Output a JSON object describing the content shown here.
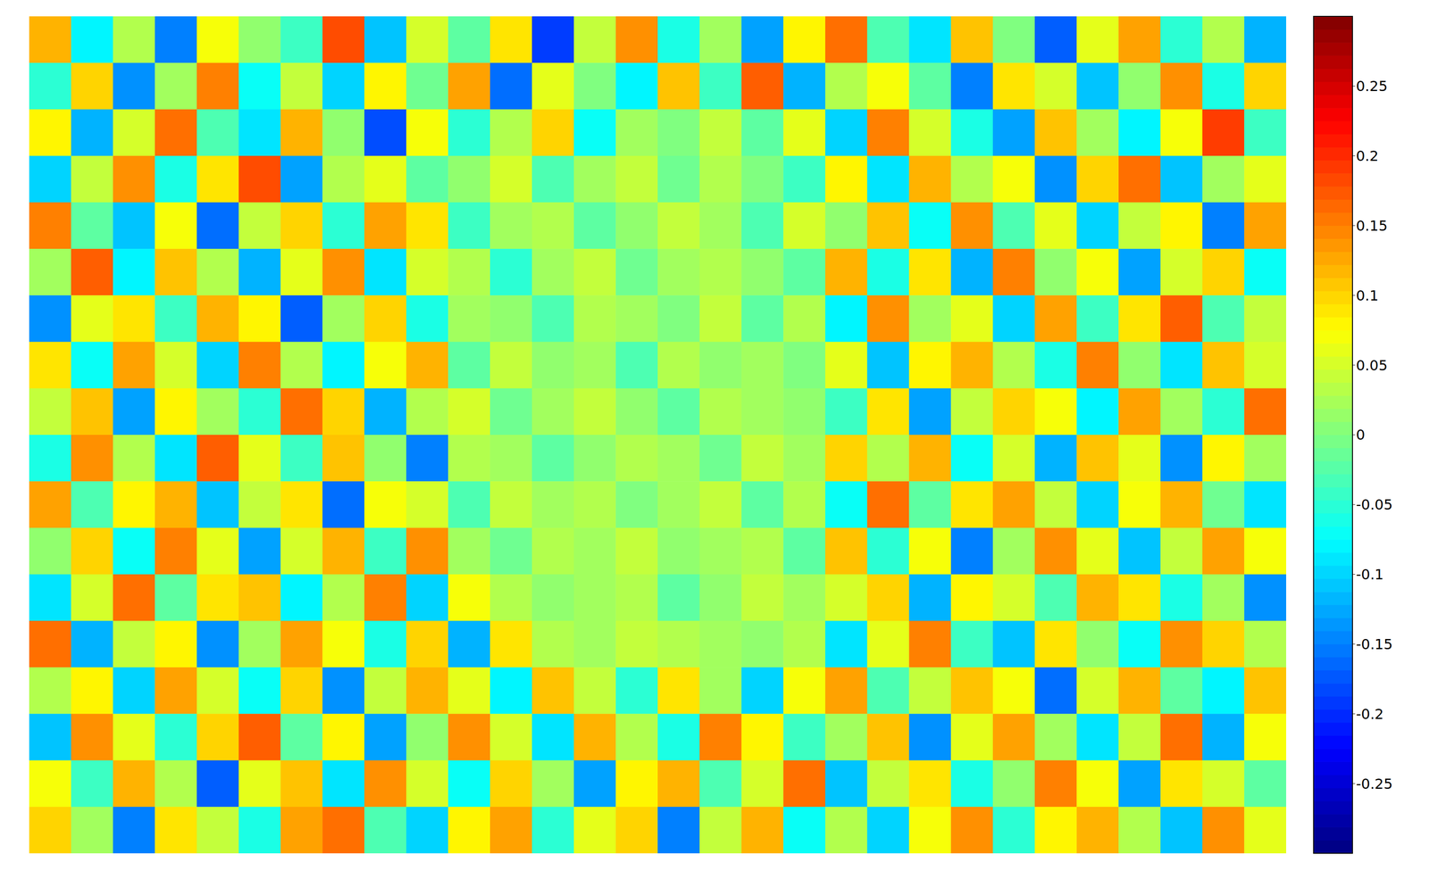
{
  "chart_data": {
    "type": "heatmap",
    "tick_labels": false,
    "cells": [
      [
        0.12,
        -0.08,
        0.03,
        -0.15,
        0.07,
        0.01,
        -0.04,
        0.18,
        -0.11,
        0.05,
        -0.02,
        0.09,
        -0.19,
        0.04,
        0.14,
        -0.06,
        0.02,
        -0.13,
        0.08,
        0.16,
        -0.03,
        -0.09,
        0.11,
        0.0,
        -0.17,
        0.06,
        0.13,
        -0.05,
        0.03,
        -0.12
      ],
      [
        -0.05,
        0.1,
        -0.14,
        0.02,
        0.15,
        -0.07,
        0.04,
        -0.1,
        0.08,
        -0.01,
        0.13,
        -0.16,
        0.06,
        0.0,
        -0.08,
        0.11,
        -0.04,
        0.17,
        -0.12,
        0.03,
        0.07,
        -0.02,
        -0.15,
        0.09,
        0.05,
        -0.11,
        0.01,
        0.14,
        -0.06,
        0.1
      ],
      [
        0.08,
        -0.12,
        0.05,
        0.16,
        -0.03,
        -0.09,
        0.12,
        0.01,
        -0.18,
        0.07,
        -0.05,
        0.03,
        0.1,
        -0.07,
        0.02,
        0.0,
        0.04,
        -0.02,
        0.06,
        -0.1,
        0.15,
        0.05,
        -0.06,
        -0.13,
        0.11,
        0.02,
        -0.08,
        0.07,
        0.19,
        -0.04
      ],
      [
        -0.1,
        0.04,
        0.14,
        -0.06,
        0.09,
        0.18,
        -0.13,
        0.03,
        0.06,
        -0.02,
        0.01,
        0.05,
        -0.03,
        0.02,
        0.04,
        -0.01,
        0.03,
        0.0,
        -0.04,
        0.08,
        -0.09,
        0.12,
        0.03,
        0.07,
        -0.14,
        0.1,
        0.16,
        -0.11,
        0.02,
        0.06
      ],
      [
        0.15,
        -0.02,
        -0.11,
        0.07,
        -0.16,
        0.04,
        0.1,
        -0.05,
        0.13,
        0.09,
        -0.04,
        0.02,
        0.03,
        -0.02,
        0.01,
        0.04,
        0.02,
        -0.03,
        0.05,
        0.01,
        0.11,
        -0.07,
        0.14,
        -0.03,
        0.06,
        -0.1,
        0.04,
        0.08,
        -0.15,
        0.13
      ],
      [
        0.02,
        0.17,
        -0.08,
        0.11,
        0.03,
        -0.12,
        0.06,
        0.14,
        -0.09,
        0.05,
        0.03,
        -0.05,
        0.02,
        0.04,
        -0.01,
        0.02,
        0.03,
        0.01,
        -0.02,
        0.12,
        -0.06,
        0.09,
        -0.12,
        0.15,
        0.01,
        0.07,
        -0.13,
        0.05,
        0.1,
        -0.07
      ],
      [
        -0.14,
        0.06,
        0.09,
        -0.04,
        0.12,
        0.08,
        -0.17,
        0.02,
        0.1,
        -0.06,
        0.02,
        0.01,
        -0.03,
        0.03,
        0.02,
        0.0,
        0.04,
        -0.02,
        0.03,
        -0.08,
        0.14,
        0.02,
        0.06,
        -0.1,
        0.13,
        -0.04,
        0.09,
        0.17,
        -0.03,
        0.04
      ],
      [
        0.09,
        -0.07,
        0.13,
        0.05,
        -0.1,
        0.15,
        0.03,
        -0.08,
        0.07,
        0.12,
        -0.02,
        0.04,
        0.01,
        0.02,
        -0.03,
        0.03,
        0.01,
        0.02,
        0.0,
        0.06,
        -0.11,
        0.08,
        0.12,
        0.03,
        -0.06,
        0.15,
        0.01,
        -0.09,
        0.11,
        0.05
      ],
      [
        0.04,
        0.11,
        -0.13,
        0.08,
        0.02,
        -0.05,
        0.16,
        0.1,
        -0.12,
        0.03,
        0.05,
        -0.01,
        0.02,
        0.04,
        0.01,
        -0.02,
        0.03,
        0.02,
        0.01,
        -0.04,
        0.09,
        -0.13,
        0.04,
        0.1,
        0.07,
        -0.08,
        0.13,
        0.02,
        -0.05,
        0.16
      ],
      [
        -0.06,
        0.14,
        0.03,
        -0.09,
        0.17,
        0.06,
        -0.04,
        0.11,
        0.01,
        -0.15,
        0.03,
        0.02,
        -0.02,
        0.01,
        0.03,
        0.02,
        -0.01,
        0.04,
        0.02,
        0.1,
        0.03,
        0.12,
        -0.07,
        0.05,
        -0.12,
        0.11,
        0.06,
        -0.14,
        0.08,
        0.02
      ],
      [
        0.13,
        -0.03,
        0.08,
        0.12,
        -0.11,
        0.04,
        0.09,
        -0.16,
        0.07,
        0.05,
        -0.03,
        0.04,
        0.02,
        0.03,
        0.0,
        0.02,
        0.04,
        -0.02,
        0.03,
        -0.07,
        0.16,
        -0.02,
        0.09,
        0.13,
        0.04,
        -0.1,
        0.07,
        0.12,
        -0.01,
        -0.09
      ],
      [
        0.01,
        0.1,
        -0.07,
        0.15,
        0.06,
        -0.13,
        0.05,
        0.12,
        -0.04,
        0.14,
        0.02,
        -0.01,
        0.03,
        0.02,
        0.04,
        0.01,
        0.02,
        0.03,
        -0.02,
        0.11,
        -0.05,
        0.07,
        -0.15,
        0.02,
        0.14,
        0.06,
        -0.11,
        0.04,
        0.13,
        0.07
      ],
      [
        -0.09,
        0.05,
        0.16,
        -0.02,
        0.09,
        0.11,
        -0.08,
        0.03,
        0.15,
        -0.1,
        0.07,
        0.03,
        0.01,
        0.02,
        0.03,
        -0.02,
        0.01,
        0.04,
        0.02,
        0.05,
        0.1,
        -0.12,
        0.08,
        0.05,
        -0.03,
        0.12,
        0.09,
        -0.06,
        0.02,
        -0.14
      ],
      [
        0.16,
        -0.12,
        0.04,
        0.08,
        -0.14,
        0.02,
        0.13,
        0.07,
        -0.06,
        0.1,
        -0.12,
        0.09,
        0.03,
        0.02,
        0.04,
        0.03,
        0.02,
        0.01,
        0.03,
        -0.09,
        0.06,
        0.15,
        -0.04,
        -0.11,
        0.09,
        0.01,
        -0.07,
        0.14,
        0.1,
        0.03
      ],
      [
        0.03,
        0.08,
        -0.1,
        0.13,
        0.05,
        -0.07,
        0.1,
        -0.14,
        0.04,
        0.12,
        0.06,
        -0.08,
        0.11,
        0.04,
        -0.05,
        0.09,
        0.02,
        -0.1,
        0.07,
        0.13,
        -0.03,
        0.04,
        0.11,
        0.07,
        -0.16,
        0.05,
        0.12,
        -0.02,
        -0.08,
        0.11
      ],
      [
        -0.11,
        0.14,
        0.06,
        -0.05,
        0.1,
        0.17,
        -0.02,
        0.08,
        -0.13,
        0.01,
        0.14,
        0.05,
        -0.09,
        0.12,
        0.03,
        -0.06,
        0.15,
        0.08,
        -0.04,
        0.02,
        0.11,
        -0.14,
        0.06,
        0.13,
        0.02,
        -0.09,
        0.04,
        0.16,
        -0.12,
        0.07
      ],
      [
        0.07,
        -0.04,
        0.12,
        0.03,
        -0.17,
        0.06,
        0.11,
        -0.09,
        0.14,
        0.05,
        -0.07,
        0.1,
        0.02,
        -0.13,
        0.08,
        0.12,
        -0.03,
        0.05,
        0.16,
        -0.11,
        0.04,
        0.09,
        -0.06,
        0.01,
        0.15,
        0.07,
        -0.13,
        0.09,
        0.05,
        -0.02
      ],
      [
        0.1,
        0.02,
        -0.15,
        0.09,
        0.04,
        -0.06,
        0.13,
        0.16,
        -0.03,
        -0.1,
        0.08,
        0.13,
        -0.05,
        0.06,
        0.1,
        -0.15,
        0.04,
        0.12,
        -0.07,
        0.03,
        -0.1,
        0.07,
        0.14,
        -0.05,
        0.08,
        0.12,
        0.03,
        -0.11,
        0.14,
        0.06
      ]
    ],
    "colorbar": {
      "range": [
        -0.3,
        0.3
      ],
      "ticks": [
        -0.25,
        -0.2,
        -0.15,
        -0.1,
        -0.05,
        0,
        0.05,
        0.1,
        0.15,
        0.2,
        0.25
      ]
    }
  }
}
